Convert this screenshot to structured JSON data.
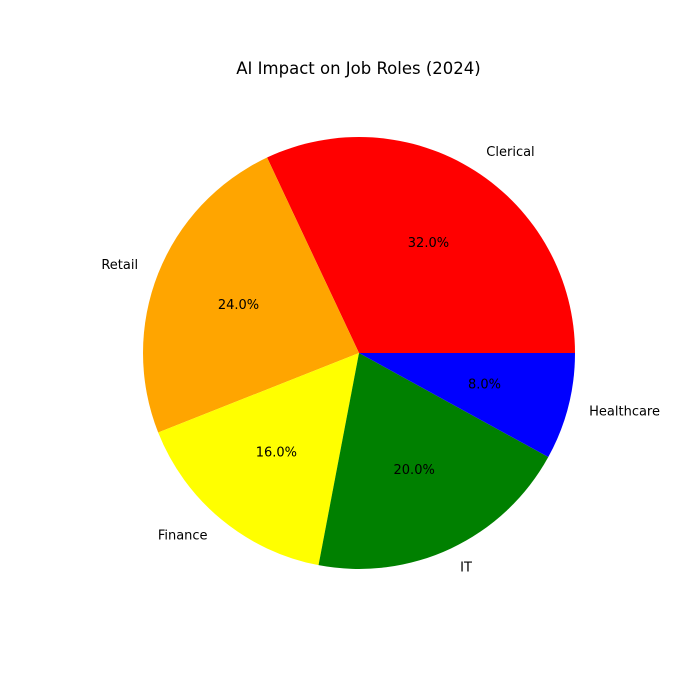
{
  "chart_data": {
    "type": "pie",
    "title": "AI Impact on Job Roles (2024)",
    "categories": [
      "Clerical",
      "Retail",
      "Finance",
      "IT",
      "Healthcare"
    ],
    "values": [
      32.0,
      24.0,
      16.0,
      20.0,
      8.0
    ],
    "value_labels": [
      "32.0%",
      "24.0%",
      "16.0%",
      "20.0%",
      "8.0%"
    ],
    "colors": [
      "#ff0000",
      "#ffa500",
      "#ffff00",
      "#008000",
      "#0000ff"
    ],
    "start_angle_deg": 0,
    "direction": "counterclockwise",
    "legend": "none"
  }
}
